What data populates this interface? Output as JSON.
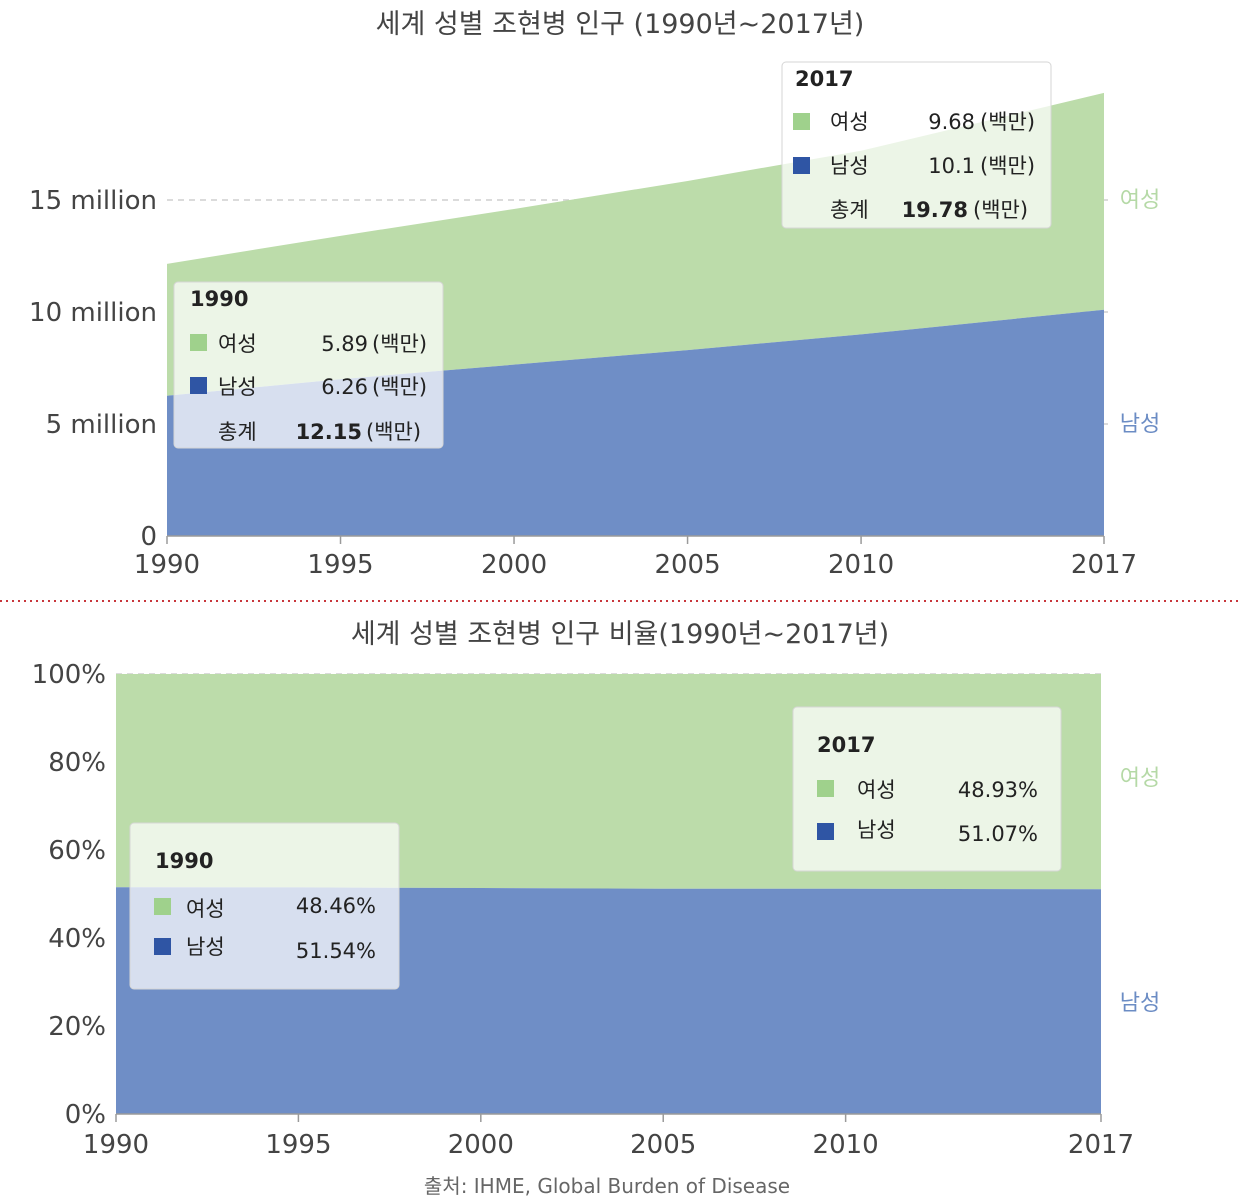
{
  "colors": {
    "female": "#bcdcaa",
    "male": "#6f8ec6",
    "female_swatch": "#9fd18c",
    "male_swatch": "#2f55a4",
    "divider": "#c8363b"
  },
  "chart_data": [
    {
      "type": "area",
      "title": "세계 성별 조현병 인구 (1990년~2017년)",
      "x": [
        1990,
        1995,
        2000,
        2005,
        2010,
        2017
      ],
      "x_ticks": [
        "1990",
        "1995",
        "2000",
        "2005",
        "2010",
        "2017"
      ],
      "y_ticks": [
        "0",
        "5 million",
        "10 million",
        "15 million"
      ],
      "ylim": [
        0,
        20000000
      ],
      "stacked": true,
      "series": [
        {
          "name": "남성",
          "values": [
            6260000,
            7000000,
            7650000,
            8300000,
            9000000,
            10100000
          ]
        },
        {
          "name": "여성",
          "values": [
            5890000,
            6400000,
            6950000,
            7550000,
            8200000,
            9680000
          ]
        }
      ],
      "series_labels": {
        "female": "여성",
        "male": "남성"
      },
      "annotations": [
        {
          "year": "1990",
          "female_label": "여성",
          "female_value": "5.89",
          "female_unit": "(백만)",
          "male_label": "남성",
          "male_value": "6.26",
          "male_unit": "(백만)",
          "total_label": "총계",
          "total_value": "12.15",
          "total_unit": "(백만)"
        },
        {
          "year": "2017",
          "female_label": "여성",
          "female_value": "9.68",
          "female_unit": "(백만)",
          "male_label": "남성",
          "male_value": "10.1",
          "male_unit": "(백만)",
          "total_label": "총계",
          "total_value": "19.78",
          "total_unit": "(백만)"
        }
      ]
    },
    {
      "type": "area",
      "title": "세계 성별 조현병 인구 비율(1990년~2017년)",
      "x": [
        1990,
        1995,
        2000,
        2005,
        2010,
        2017
      ],
      "x_ticks": [
        "1990",
        "1995",
        "2000",
        "2005",
        "2010",
        "2017"
      ],
      "y_ticks": [
        "0%",
        "20%",
        "40%",
        "60%",
        "80%",
        "100%"
      ],
      "ylim": [
        0,
        100
      ],
      "stacked": true,
      "series": [
        {
          "name": "남성",
          "values": [
            51.54,
            51.5,
            51.35,
            51.2,
            51.2,
            51.07
          ]
        },
        {
          "name": "여성",
          "values": [
            48.46,
            48.5,
            48.65,
            48.8,
            48.8,
            48.93
          ]
        }
      ],
      "series_labels": {
        "female": "여성",
        "male": "남성"
      },
      "annotations": [
        {
          "year": "1990",
          "female_label": "여성",
          "female_value": "48.46%",
          "male_label": "남성",
          "male_value": "51.54%"
        },
        {
          "year": "2017",
          "female_label": "여성",
          "female_value": "48.93%",
          "male_label": "남성",
          "male_value": "51.07%"
        }
      ]
    }
  ],
  "source": "출처: IHME, Global Burden of Disease"
}
